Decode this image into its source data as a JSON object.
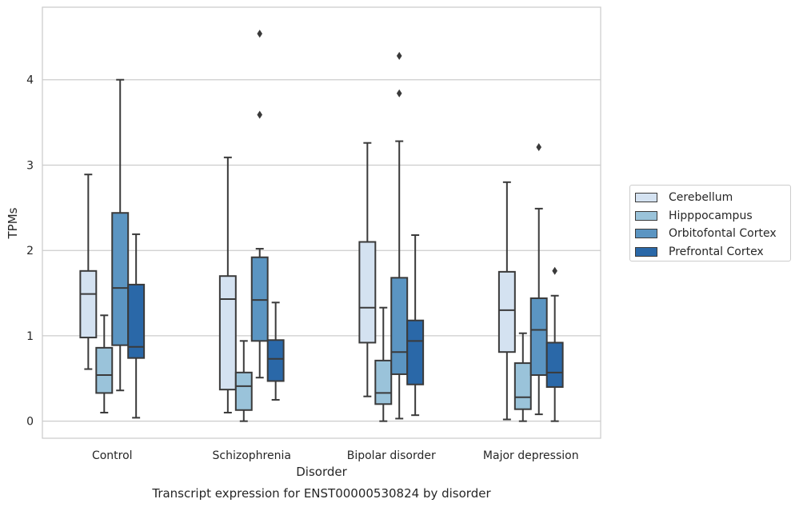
{
  "chart_data": {
    "type": "box",
    "title": "Transcript expression for ENST00000530824 by disorder",
    "xlabel": "Disorder",
    "ylabel": "TPMs",
    "ylim": [
      -0.2,
      4.85
    ],
    "yticks": [
      0,
      1,
      2,
      3,
      4
    ],
    "grid": "horizontal",
    "legend_position": "right",
    "categories": [
      "Control",
      "Schizophrenia",
      "Bipolar disorder",
      "Major depression"
    ],
    "series": [
      {
        "name": "Cerebellum",
        "color": "#d4e2f1",
        "boxes": [
          {
            "whisker_low": 0.61,
            "q1": 0.98,
            "median": 1.49,
            "q3": 1.76,
            "whisker_high": 2.89,
            "outliers": []
          },
          {
            "whisker_low": 0.1,
            "q1": 0.37,
            "median": 1.43,
            "q3": 1.7,
            "whisker_high": 3.09,
            "outliers": []
          },
          {
            "whisker_low": 0.29,
            "q1": 0.92,
            "median": 1.33,
            "q3": 2.1,
            "whisker_high": 3.26,
            "outliers": []
          },
          {
            "whisker_low": 0.02,
            "q1": 0.81,
            "median": 1.3,
            "q3": 1.75,
            "whisker_high": 2.8,
            "outliers": []
          }
        ]
      },
      {
        "name": "Hipppocampus",
        "color": "#9ac3da",
        "boxes": [
          {
            "whisker_low": 0.1,
            "q1": 0.33,
            "median": 0.54,
            "q3": 0.86,
            "whisker_high": 1.24,
            "outliers": []
          },
          {
            "whisker_low": 0.0,
            "q1": 0.13,
            "median": 0.41,
            "q3": 0.57,
            "whisker_high": 0.94,
            "outliers": []
          },
          {
            "whisker_low": 0.0,
            "q1": 0.2,
            "median": 0.33,
            "q3": 0.71,
            "whisker_high": 1.33,
            "outliers": []
          },
          {
            "whisker_low": 0.0,
            "q1": 0.14,
            "median": 0.28,
            "q3": 0.68,
            "whisker_high": 1.03,
            "outliers": []
          }
        ]
      },
      {
        "name": "Orbitofontal Cortex",
        "color": "#5b95c2",
        "boxes": [
          {
            "whisker_low": 0.36,
            "q1": 0.89,
            "median": 1.56,
            "q3": 2.44,
            "whisker_high": 4.0,
            "outliers": []
          },
          {
            "whisker_low": 0.51,
            "q1": 0.94,
            "median": 1.42,
            "q3": 1.92,
            "whisker_high": 2.02,
            "outliers": [
              3.59,
              4.54
            ]
          },
          {
            "whisker_low": 0.03,
            "q1": 0.55,
            "median": 0.81,
            "q3": 1.68,
            "whisker_high": 3.28,
            "outliers": [
              3.84,
              4.28
            ]
          },
          {
            "whisker_low": 0.08,
            "q1": 0.54,
            "median": 1.07,
            "q3": 1.44,
            "whisker_high": 2.49,
            "outliers": [
              3.21
            ]
          }
        ]
      },
      {
        "name": "Prefrontal Cortex",
        "color": "#2a68a8",
        "boxes": [
          {
            "whisker_low": 0.04,
            "q1": 0.74,
            "median": 0.87,
            "q3": 1.6,
            "whisker_high": 2.19,
            "outliers": []
          },
          {
            "whisker_low": 0.25,
            "q1": 0.47,
            "median": 0.73,
            "q3": 0.95,
            "whisker_high": 1.39,
            "outliers": []
          },
          {
            "whisker_low": 0.07,
            "q1": 0.43,
            "median": 0.94,
            "q3": 1.18,
            "whisker_high": 2.18,
            "outliers": []
          },
          {
            "whisker_low": 0.0,
            "q1": 0.4,
            "median": 0.57,
            "q3": 0.92,
            "whisker_high": 1.47,
            "outliers": [
              1.76
            ]
          }
        ]
      }
    ]
  }
}
